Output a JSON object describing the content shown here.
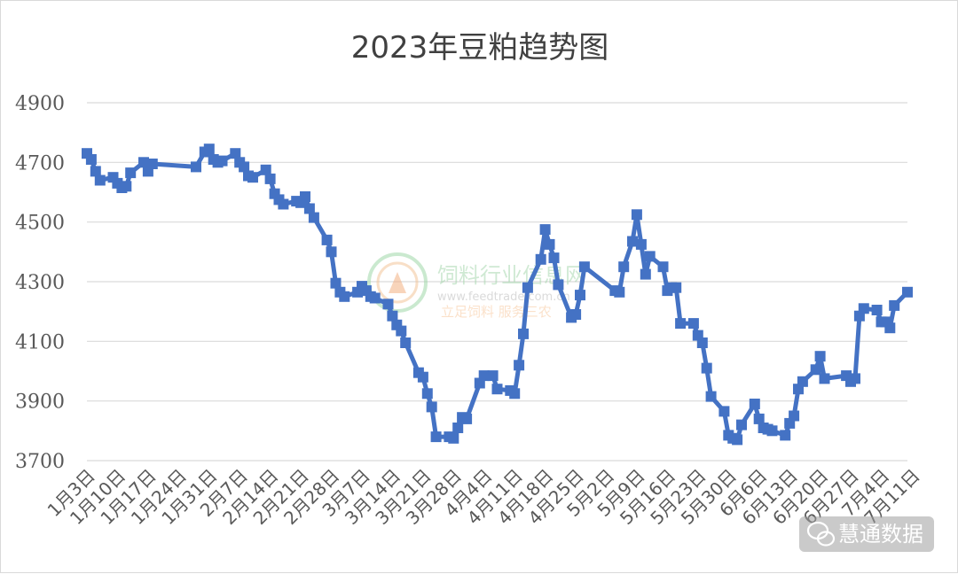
{
  "chart_data": {
    "type": "line",
    "title": "2023年豆粕趋势图",
    "xlabel": "",
    "ylabel": "",
    "ylim": [
      3600,
      4900
    ],
    "yticks": [
      3700,
      3900,
      4100,
      4300,
      4500,
      4700,
      4900
    ],
    "grid": true,
    "legend": "none",
    "color": "#4472C4",
    "xtick_labels": [
      "1月3日",
      "1月10日",
      "1月17日",
      "1月24日",
      "1月31日",
      "2月7日",
      "2月14日",
      "2月21日",
      "2月28日",
      "3月7日",
      "3月14日",
      "3月21日",
      "3月28日",
      "4月4日",
      "4月11日",
      "4月18日",
      "4月25日",
      "5月2日",
      "5月9日",
      "5月16日",
      "5月23日",
      "5月30日",
      "6月6日",
      "6月13日",
      "6月20日",
      "6月27日",
      "7月4日",
      "7月11日"
    ],
    "points": [
      [
        "1月3日",
        4730
      ],
      [
        "1月4日",
        4710
      ],
      [
        "1月5日",
        4670
      ],
      [
        "1月6日",
        4640
      ],
      [
        "1月9日",
        4650
      ],
      [
        "1月10日",
        4630
      ],
      [
        "1月11日",
        4615
      ],
      [
        "1月12日",
        4620
      ],
      [
        "1月13日",
        4665
      ],
      [
        "1月16日",
        4700
      ],
      [
        "1月17日",
        4670
      ],
      [
        "1月18日",
        4695
      ],
      [
        "1月28日",
        4685
      ],
      [
        "1月30日",
        4735
      ],
      [
        "1月31日",
        4745
      ],
      [
        "2月1日",
        4710
      ],
      [
        "2月2日",
        4700
      ],
      [
        "2月3日",
        4705
      ],
      [
        "2月6日",
        4730
      ],
      [
        "2月7日",
        4700
      ],
      [
        "2月8日",
        4685
      ],
      [
        "2月9日",
        4655
      ],
      [
        "2月10日",
        4650
      ],
      [
        "2月13日",
        4675
      ],
      [
        "2月14日",
        4645
      ],
      [
        "2月15日",
        4595
      ],
      [
        "2月16日",
        4575
      ],
      [
        "2月17日",
        4560
      ],
      [
        "2月20日",
        4570
      ],
      [
        "2月21日",
        4565
      ],
      [
        "2月22日",
        4585
      ],
      [
        "2月23日",
        4545
      ],
      [
        "2月24日",
        4515
      ],
      [
        "2月27日",
        4440
      ],
      [
        "2月28日",
        4400
      ],
      [
        "3月1日",
        4295
      ],
      [
        "3月2日",
        4265
      ],
      [
        "3月3日",
        4250
      ],
      [
        "3月6日",
        4265
      ],
      [
        "3月7日",
        4285
      ],
      [
        "3月8日",
        4270
      ],
      [
        "3月9日",
        4250
      ],
      [
        "3月10日",
        4245
      ],
      [
        "3月13日",
        4225
      ],
      [
        "3月14日",
        4185
      ],
      [
        "3月15日",
        4155
      ],
      [
        "3月16日",
        4135
      ],
      [
        "3月17日",
        4095
      ],
      [
        "3月20日",
        3995
      ],
      [
        "3月21日",
        3980
      ],
      [
        "3月22日",
        3925
      ],
      [
        "3月23日",
        3880
      ],
      [
        "3月24日",
        3780
      ],
      [
        "3月27日",
        3780
      ],
      [
        "3月28日",
        3775
      ],
      [
        "3月29日",
        3810
      ],
      [
        "3月30日",
        3845
      ],
      [
        "3月31日",
        3840
      ],
      [
        "4月3日",
        3960
      ],
      [
        "4月4日",
        3985
      ],
      [
        "4月6日",
        3985
      ],
      [
        "4月7日",
        3940
      ],
      [
        "4月10日",
        3935
      ],
      [
        "4月11日",
        3925
      ],
      [
        "4月12日",
        4020
      ],
      [
        "4月13日",
        4125
      ],
      [
        "4月14日",
        4280
      ],
      [
        "4月17日",
        4375
      ],
      [
        "4月18日",
        4475
      ],
      [
        "4月19日",
        4425
      ],
      [
        "4月20日",
        4380
      ],
      [
        "4月21日",
        4290
      ],
      [
        "4月24日",
        4180
      ],
      [
        "4月25日",
        4190
      ],
      [
        "4月26日",
        4255
      ],
      [
        "4月27日",
        4350
      ],
      [
        "5月4日",
        4270
      ],
      [
        "5月5日",
        4265
      ],
      [
        "5月6日",
        4350
      ],
      [
        "5月8日",
        4435
      ],
      [
        "5月9日",
        4525
      ],
      [
        "5月10日",
        4425
      ],
      [
        "5月11日",
        4325
      ],
      [
        "5月12日",
        4385
      ],
      [
        "5月15日",
        4350
      ],
      [
        "5月16日",
        4270
      ],
      [
        "5月17日",
        4280
      ],
      [
        "5月18日",
        4280
      ],
      [
        "5月19日",
        4160
      ],
      [
        "5月22日",
        4160
      ],
      [
        "5月23日",
        4120
      ],
      [
        "5月24日",
        4095
      ],
      [
        "5月25日",
        4010
      ],
      [
        "5月26日",
        3915
      ],
      [
        "5月29日",
        3865
      ],
      [
        "5月30日",
        3785
      ],
      [
        "5月31日",
        3775
      ],
      [
        "6月1日",
        3770
      ],
      [
        "6月2日",
        3820
      ],
      [
        "6月5日",
        3890
      ],
      [
        "6月6日",
        3840
      ],
      [
        "6月7日",
        3810
      ],
      [
        "6月8日",
        3805
      ],
      [
        "6月9日",
        3800
      ],
      [
        "6月12日",
        3785
      ],
      [
        "6月13日",
        3825
      ],
      [
        "6月14日",
        3850
      ],
      [
        "6月15日",
        3940
      ],
      [
        "6月16日",
        3965
      ],
      [
        "6月19日",
        4005
      ],
      [
        "6月20日",
        4050
      ],
      [
        "6月21日",
        3975
      ],
      [
        "6月26日",
        3985
      ],
      [
        "6月27日",
        3965
      ],
      [
        "6月28日",
        3975
      ],
      [
        "6月29日",
        4185
      ],
      [
        "6月30日",
        4210
      ],
      [
        "7月3日",
        4205
      ],
      [
        "7月4日",
        4165
      ],
      [
        "7月5日",
        4165
      ],
      [
        "7月6日",
        4145
      ],
      [
        "7月7日",
        4220
      ],
      [
        "7月10日",
        4265
      ]
    ]
  },
  "watermark": {
    "cn_name": "饲料行业信息网",
    "url": "www.feedtrade.com.cn",
    "slogan": "立足饲料 服务三农"
  },
  "brand": {
    "name": "慧通数据",
    "icon": "wechat-icon"
  }
}
